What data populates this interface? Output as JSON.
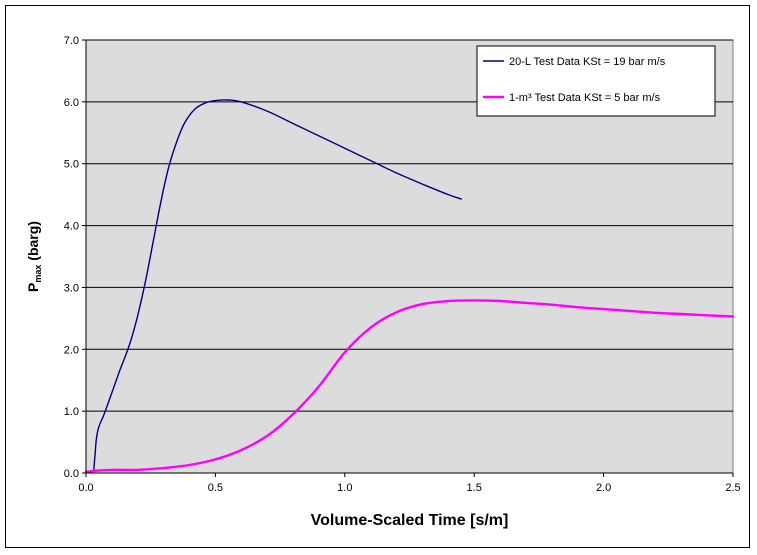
{
  "chart_data": {
    "type": "line",
    "title": "",
    "xlabel": "Volume-Scaled Time [s/m]",
    "ylabel_main": "P",
    "ylabel_sub": "max",
    "ylabel_rest": " (barg)",
    "xlim": [
      0,
      2.5
    ],
    "ylim": [
      0,
      7
    ],
    "xticks": [
      0,
      0.5,
      1.0,
      1.5,
      2.0,
      2.5
    ],
    "xtick_labels": [
      "0.0",
      "0.5",
      "1.0",
      "1.5",
      "2.0",
      "2.5"
    ],
    "yticks": [
      0,
      1,
      2,
      3,
      4,
      5,
      6,
      7
    ],
    "ytick_labels": [
      "0.0",
      "1.0",
      "2.0",
      "3.0",
      "4.0",
      "5.0",
      "6.0",
      "7.0"
    ],
    "grid": "horizontal",
    "plot_background": "#dcdcdc",
    "legend_position": "top-right",
    "series": [
      {
        "name": "20-L Test Data    KSt = 19 bar m/s",
        "color": "#000080",
        "x": [
          0.03,
          0.035,
          0.04,
          0.05,
          0.07,
          0.1,
          0.13,
          0.17,
          0.2,
          0.23,
          0.26,
          0.29,
          0.32,
          0.35,
          0.38,
          0.42,
          0.46,
          0.5,
          0.55,
          0.6,
          0.7,
          0.8,
          0.9,
          1.0,
          1.1,
          1.2,
          1.3,
          1.4,
          1.45
        ],
        "y": [
          0.05,
          0.3,
          0.55,
          0.75,
          0.95,
          1.3,
          1.65,
          2.1,
          2.55,
          3.1,
          3.75,
          4.4,
          4.95,
          5.35,
          5.65,
          5.88,
          5.98,
          6.02,
          6.03,
          6.0,
          5.85,
          5.65,
          5.45,
          5.25,
          5.05,
          4.85,
          4.67,
          4.5,
          4.43
        ]
      },
      {
        "name": "1-m³ Test Data   KSt = 5 bar m/s",
        "color": "#ff00ff",
        "x": [
          0.0,
          0.05,
          0.1,
          0.2,
          0.3,
          0.4,
          0.5,
          0.6,
          0.7,
          0.8,
          0.9,
          1.0,
          1.1,
          1.2,
          1.3,
          1.4,
          1.5,
          1.6,
          1.7,
          1.8,
          1.9,
          2.0,
          2.1,
          2.2,
          2.3,
          2.4,
          2.5
        ],
        "y": [
          0.02,
          0.04,
          0.05,
          0.05,
          0.08,
          0.13,
          0.22,
          0.37,
          0.6,
          0.95,
          1.4,
          1.95,
          2.35,
          2.6,
          2.73,
          2.78,
          2.79,
          2.78,
          2.75,
          2.72,
          2.68,
          2.65,
          2.62,
          2.59,
          2.57,
          2.55,
          2.53
        ]
      }
    ]
  }
}
